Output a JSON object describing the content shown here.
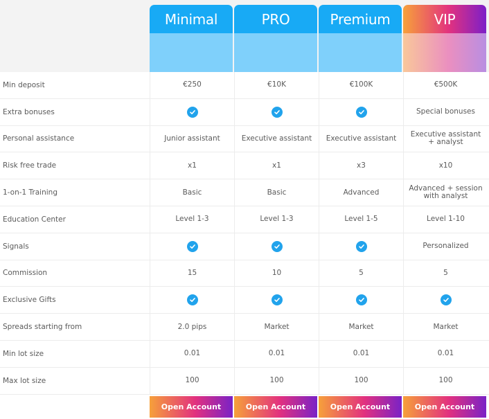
{
  "plans": [
    {
      "name": "Minimal"
    },
    {
      "name": "PRO"
    },
    {
      "name": "Premium"
    },
    {
      "name": "VIP"
    }
  ],
  "rows": [
    {
      "label": "Min deposit",
      "cells": [
        "€250",
        "€10K",
        "€100K",
        "€500K"
      ]
    },
    {
      "label": "Extra bonuses",
      "cells": [
        "check",
        "check",
        "check",
        "Special bonuses"
      ]
    },
    {
      "label": "Personal assistance",
      "cells": [
        "Junior assistant",
        "Executive assistant",
        "Executive assistant",
        "Executive assistant + analyst"
      ]
    },
    {
      "label": "Risk free trade",
      "cells": [
        "x1",
        "x1",
        "x3",
        "x10"
      ]
    },
    {
      "label": "1-on-1 Training",
      "cells": [
        "Basic",
        "Basic",
        "Advanced",
        "Advanced + session with analyst"
      ]
    },
    {
      "label": "Education Center",
      "cells": [
        "Level 1-3",
        "Level 1-3",
        "Level 1-5",
        "Level 1-10"
      ]
    },
    {
      "label": "Signals",
      "cells": [
        "check",
        "check",
        "check",
        "Personalized"
      ]
    },
    {
      "label": "Commission",
      "cells": [
        "15",
        "10",
        "5",
        "5"
      ]
    },
    {
      "label": "Exclusive Gifts",
      "cells": [
        "check",
        "check",
        "check",
        "check"
      ]
    },
    {
      "label": "Spreads starting from",
      "cells": [
        "2.0 pips",
        "Market",
        "Market",
        "Market"
      ]
    },
    {
      "label": "Min lot size",
      "cells": [
        "0.01",
        "0.01",
        "0.01",
        "0.01"
      ]
    },
    {
      "label": "Max lot size",
      "cells": [
        "100",
        "100",
        "100",
        "100"
      ]
    }
  ],
  "cta": {
    "label": "Open Account"
  },
  "colors": {
    "accent_blue": "#18aaf5",
    "check_blue": "#21a3ec",
    "vip_gradient": [
      "#f7a13a",
      "#e2327f",
      "#7c1fc8"
    ]
  }
}
